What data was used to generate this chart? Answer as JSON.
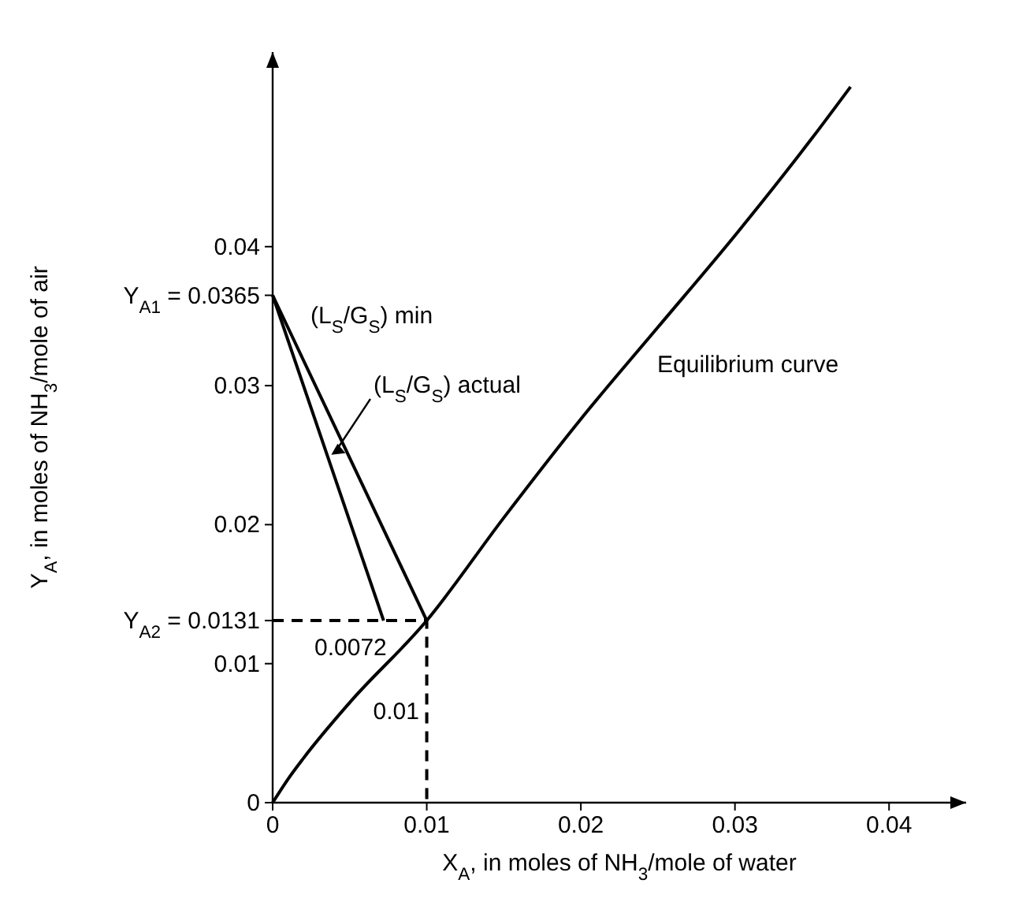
{
  "chart_data": {
    "type": "line",
    "xlabel": "X$_{A}$, in moles of NH$_{3}$/mole of water",
    "ylabel": "Y$_{A}$, in moles of NH$_{3}$/mole of air",
    "xlim": [
      0,
      0.045
    ],
    "ylim": [
      0,
      0.054
    ],
    "xticks": [
      0,
      0.01,
      0.02,
      0.03,
      0.04
    ],
    "yticks": [
      0,
      0.01,
      {
        "value": 0.0131,
        "label": "Y$_{A2}$ = 0.0131"
      },
      0.02,
      0.03,
      {
        "value": 0.0365,
        "label": "Y$_{A1}$ = 0.0365"
      },
      0.04
    ],
    "grid": false,
    "series": [
      {
        "color": "#000000",
        "line_style": "solid",
        "x": [
          0,
          0.001,
          0.002,
          0.005,
          0.01,
          0.015,
          0.02,
          0.025,
          0.03,
          0.035,
          0.0375
        ],
        "values": [
          0,
          0.0017,
          0.0032,
          0.0072,
          0.0131,
          0.0205,
          0.0276,
          0.0342,
          0.0408,
          0.0478,
          0.0515
        ]
      },
      {
        "color": "#000000",
        "line_style": "solid",
        "x": [
          0,
          0.01
        ],
        "values": [
          0.0365,
          0.0131
        ]
      },
      {
        "color": "#000000",
        "line_style": "solid",
        "x": [
          0,
          0.0072
        ],
        "values": [
          0.0365,
          0.0131
        ]
      },
      {
        "color": "#000000",
        "line_style": "dashed",
        "x": [
          0,
          0.01,
          0.01
        ],
        "values": [
          0.0131,
          0.0131,
          0
        ]
      }
    ],
    "annotations": [
      "(L$_{S}$/G$_{S}$) min",
      "(L$_{S}$/G$_{S}$) actual",
      "Equilibrium curve",
      {
        "text": "0.0072",
        "x": 0.0072,
        "y": 0.0131
      },
      "0.01"
    ]
  }
}
